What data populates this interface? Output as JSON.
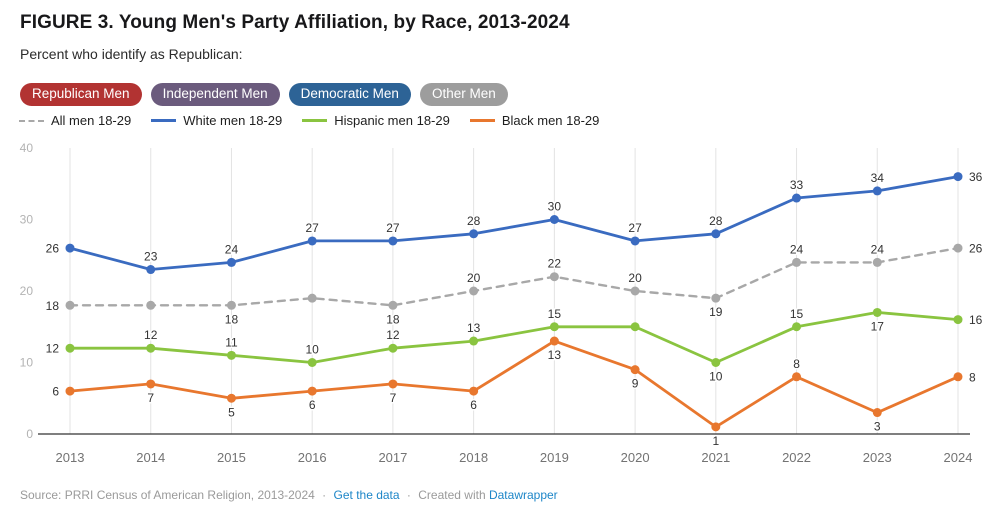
{
  "colors": {
    "accent_link": "#1d86c8",
    "grid": "#e3e3e3",
    "axis": "#333333"
  },
  "tabs": [
    {
      "label": "Republican Men",
      "color": "#b23332",
      "active": true
    },
    {
      "label": "Independent Men",
      "color": "#6b5b7d",
      "active": false
    },
    {
      "label": "Democratic Men",
      "color": "#2d6396",
      "active": false
    },
    {
      "label": "Other Men",
      "color": "#9d9d9d",
      "active": false
    }
  ],
  "chart_data": {
    "type": "line",
    "title": "FIGURE 3. Young Men's Party Affiliation, by Race, 2013-2024",
    "subtitle": "Percent who identify as Republican:",
    "x": [
      2013,
      2014,
      2015,
      2016,
      2017,
      2018,
      2019,
      2020,
      2021,
      2022,
      2023,
      2024
    ],
    "xlabel": "",
    "ylabel": "",
    "ylim": [
      0,
      40
    ],
    "yticks": [
      0,
      10,
      20,
      30,
      40
    ],
    "grid": "vertical-only",
    "legend_position": "top-left",
    "series": [
      {
        "name": "All men 18-29",
        "color": "#a8a8a8",
        "dash": true,
        "values": [
          18,
          18,
          18,
          19,
          18,
          20,
          22,
          20,
          19,
          24,
          24,
          26
        ],
        "labels": [
          "18",
          null,
          "18",
          null,
          "18",
          "20",
          "22",
          "20",
          "19",
          "24",
          "24",
          "26"
        ],
        "label_pos": [
          "left",
          null,
          "below",
          null,
          "below",
          "above",
          "above",
          "above",
          "below",
          "above",
          "above",
          "right"
        ]
      },
      {
        "name": "White men 18-29",
        "color": "#3a6bc0",
        "dash": false,
        "values": [
          26,
          23,
          24,
          27,
          27,
          28,
          30,
          27,
          28,
          33,
          34,
          36
        ],
        "labels": [
          "26",
          "23",
          "24",
          "27",
          "27",
          "28",
          "30",
          "27",
          "28",
          "33",
          "34",
          "36"
        ],
        "label_pos": [
          "left",
          "above",
          "above",
          "above",
          "above",
          "above",
          "above",
          "above",
          "above",
          "above",
          "above",
          "right"
        ]
      },
      {
        "name": "Hispanic men 18-29",
        "color": "#8ac440",
        "dash": false,
        "values": [
          12,
          12,
          11,
          10,
          12,
          13,
          15,
          15,
          10,
          15,
          17,
          16
        ],
        "labels": [
          "12",
          "12",
          "11",
          "10",
          "12",
          "13",
          "15",
          null,
          "10",
          "15",
          "17",
          "16"
        ],
        "label_pos": [
          "left",
          "above",
          "above",
          "above",
          "above",
          "above",
          "above",
          null,
          "below",
          "above",
          "below",
          "right"
        ]
      },
      {
        "name": "Black men 18-29",
        "color": "#e8772e",
        "dash": false,
        "values": [
          6,
          7,
          5,
          6,
          7,
          6,
          13,
          9,
          1,
          8,
          3,
          8
        ],
        "labels": [
          "6",
          "7",
          "5",
          "6",
          "7",
          "6",
          "13",
          "9",
          "1",
          "8",
          "3",
          "8"
        ],
        "label_pos": [
          "left",
          "below",
          "below",
          "below",
          "below",
          "below",
          "below",
          "below",
          "below",
          "above",
          "below",
          "right"
        ]
      }
    ]
  },
  "footer": {
    "source": "Source: PRRI Census of American Religion, 2013-2024",
    "sep": "·",
    "link1": "Get the data",
    "created": "Created with",
    "link2": "Datawrapper"
  }
}
